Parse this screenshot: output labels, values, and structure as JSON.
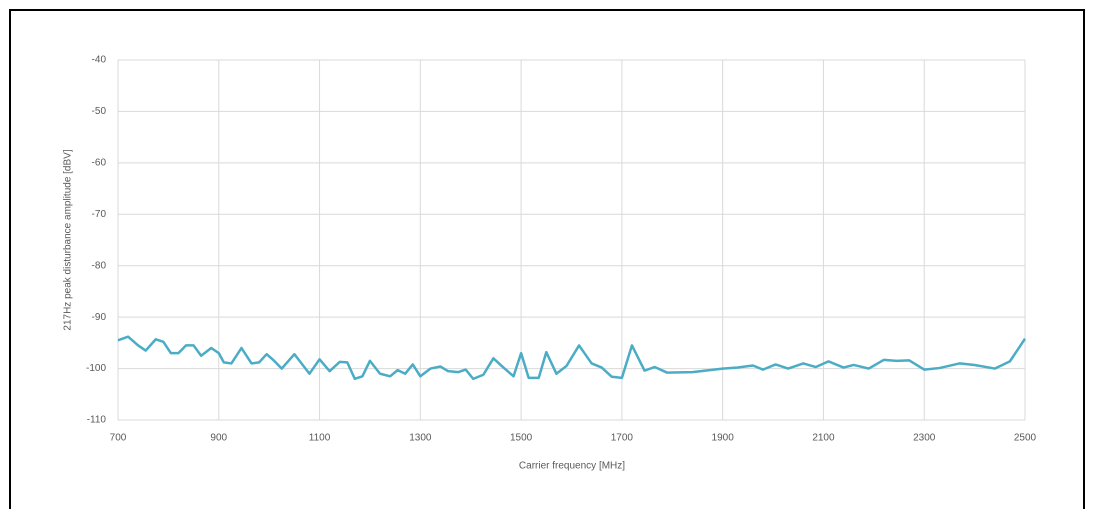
{
  "chart_data": {
    "type": "line",
    "xlabel": "Carrier frequency [MHz]",
    "ylabel": "217Hz peak disturbance amplitude [dBV]",
    "xlim": [
      700,
      2500
    ],
    "xticks": [
      700,
      900,
      1100,
      1300,
      1500,
      1700,
      1900,
      2100,
      2300,
      2500
    ],
    "ylim": [
      -110,
      -40
    ],
    "yticks": [
      -40,
      -50,
      -60,
      -70,
      -80,
      -90,
      -100,
      -110
    ],
    "grid": true,
    "series": [
      {
        "color": "#4bacc6",
        "x": [
          700,
          720,
          740,
          755,
          775,
          790,
          805,
          820,
          835,
          850,
          865,
          885,
          900,
          910,
          925,
          945,
          965,
          980,
          995,
          1010,
          1025,
          1050,
          1080,
          1100,
          1120,
          1140,
          1155,
          1170,
          1185,
          1200,
          1220,
          1240,
          1255,
          1270,
          1285,
          1300,
          1320,
          1340,
          1355,
          1375,
          1390,
          1405,
          1425,
          1445,
          1465,
          1485,
          1500,
          1515,
          1535,
          1550,
          1570,
          1590,
          1615,
          1640,
          1660,
          1680,
          1700,
          1720,
          1745,
          1765,
          1790,
          1840,
          1900,
          1930,
          1960,
          1980,
          2005,
          2030,
          2060,
          2085,
          2110,
          2140,
          2160,
          2190,
          2220,
          2245,
          2270,
          2300,
          2330,
          2370,
          2400,
          2440,
          2470,
          2500
        ],
        "values": [
          -94.5,
          -93.8,
          -95.5,
          -96.5,
          -94.3,
          -94.8,
          -97,
          -97,
          -95.5,
          -95.5,
          -97.5,
          -96,
          -97,
          -98.8,
          -99,
          -96,
          -99,
          -98.8,
          -97.2,
          -98.5,
          -100,
          -97.2,
          -101,
          -98.2,
          -100.5,
          -98.7,
          -98.8,
          -102,
          -101.5,
          -98.5,
          -101,
          -101.5,
          -100.3,
          -101,
          -99.2,
          -101.5,
          -100,
          -99.6,
          -100.5,
          -100.7,
          -100.2,
          -102,
          -101.2,
          -98,
          -99.8,
          -101.5,
          -97,
          -101.8,
          -101.8,
          -96.8,
          -101,
          -99.5,
          -95.5,
          -99,
          -99.8,
          -101.6,
          -101.8,
          -95.5,
          -100.4,
          -99.7,
          -100.8,
          -100.7,
          -100,
          -99.8,
          -99.4,
          -100.2,
          -99.2,
          -100,
          -99,
          -99.7,
          -98.6,
          -99.8,
          -99.3,
          -100,
          -98.3,
          -98.5,
          -98.4,
          -100.2,
          -99.9,
          -99,
          -99.3,
          -100,
          -98.6,
          -94.2
        ]
      }
    ]
  }
}
